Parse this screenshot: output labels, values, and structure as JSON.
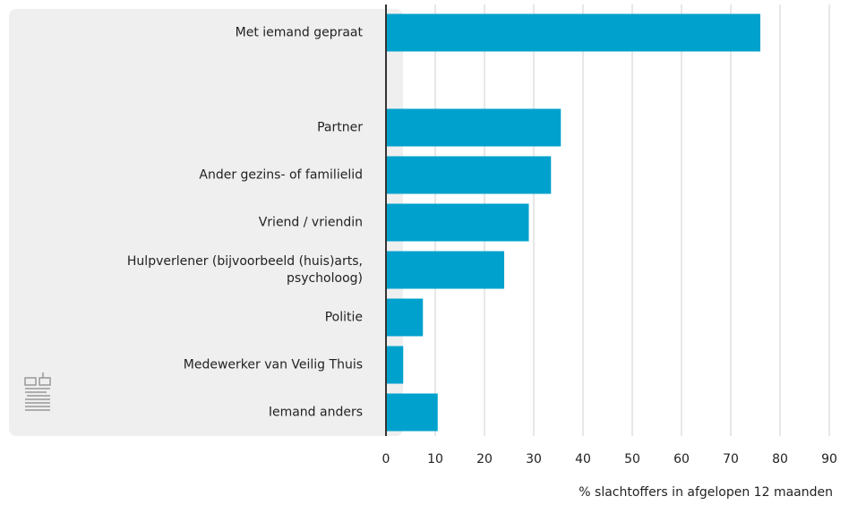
{
  "chart_data": {
    "type": "bar",
    "orientation": "horizontal",
    "categories": [
      "Met iemand gepraat",
      null,
      "Partner",
      "Ander gezins- of familielid",
      "Vriend / vriendin",
      "Hulpverlener (bijvoorbeeld (huis)arts, psycholoog)",
      "Politie",
      "Medewerker van Veilig Thuis",
      "Iemand anders"
    ],
    "values": [
      76,
      null,
      35.5,
      33.5,
      29,
      24,
      7.5,
      3.5,
      10.5
    ],
    "color": "#00a1cd",
    "xlabel": "% slachtoffers in afgelopen 12 maanden",
    "xlim": [
      0,
      90
    ],
    "xticks": [
      0,
      10,
      20,
      30,
      40,
      50,
      60,
      70,
      80,
      90
    ],
    "grid": true
  }
}
